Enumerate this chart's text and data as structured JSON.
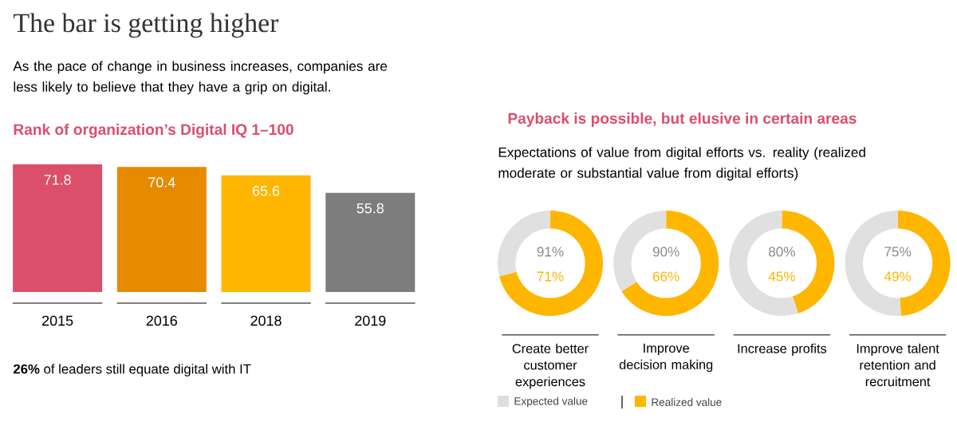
{
  "chart_data": [
    {
      "type": "other",
      "title": "The bar is getting higher",
      "subtitle": "As the pace of change in business increases, companies are less likely to believe that they have a grip on digital."
    },
    {
      "type": "bar",
      "title": "Rank of organization’s Digital IQ 1–100",
      "categories": [
        "2015",
        "2016",
        "2018",
        "2019"
      ],
      "values": [
        71.8,
        70.4,
        65.6,
        55.8
      ],
      "colors": [
        "#db4e6c",
        "#e68a00",
        "#ffb600",
        "#7d7d7d"
      ],
      "data_labels": true,
      "annotations": [
        "**26%** of leaders still equate digital with IT"
      ]
    },
    {
      "type": "other",
      "title": "Payback is possible, but elusive in certain areas",
      "subtitle": "Expectations of value from digital efforts vs. reality (realized moderate or substantial value from digital efforts)",
      "annotations": [
        "Expected value",
        "Realized value"
      ],
      "colors": [
        "#dedede",
        "#ffb600"
      ]
    },
    {
      "type": "donut",
      "categories": [
        null,
        null
      ],
      "values": [
        71,
        29
      ],
      "colors": [
        "#ffb600",
        "#e0e0e0"
      ],
      "annotations": [
        "91%",
        "71%"
      ],
      "xlabel": "Create better customer experiences"
    },
    {
      "type": "donut",
      "categories": [
        null,
        null
      ],
      "values": [
        66,
        34
      ],
      "colors": [
        "#ffb600",
        "#e0e0e0"
      ],
      "annotations": [
        "90%",
        "66%"
      ],
      "xlabel": "Improve decision making"
    },
    {
      "type": "donut",
      "categories": [
        null,
        null
      ],
      "values": [
        45,
        55
      ],
      "colors": [
        "#ffb600",
        "#e0e0e0"
      ],
      "annotations": [
        "80%",
        "45%"
      ],
      "xlabel": "Increase profits"
    },
    {
      "type": "donut",
      "categories": [
        null,
        null
      ],
      "values": [
        49,
        51
      ],
      "colors": [
        "#ffb600",
        "#e0e0e0"
      ],
      "annotations": [
        "75%",
        "49%"
      ],
      "xlabel": "Improve talent retention and recruitment"
    }
  ]
}
